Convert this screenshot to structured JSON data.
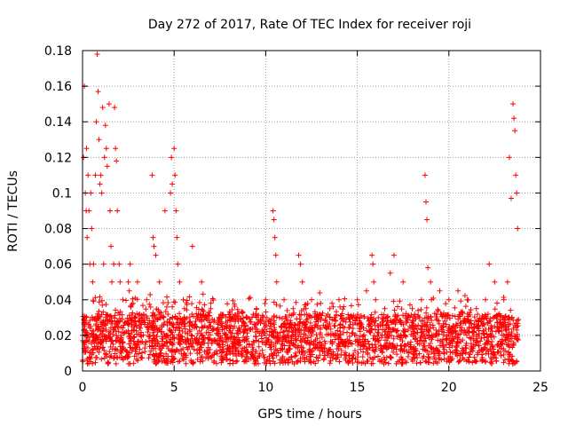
{
  "chart_data": {
    "type": "scatter",
    "title": "Day 272 of 2017, Rate Of TEC Index for receiver roji",
    "xlabel": "GPS time / hours",
    "ylabel": "ROTI / TECUs",
    "xlim": [
      0,
      25
    ],
    "ylim": [
      0,
      0.18
    ],
    "xticks": [
      0,
      5,
      10,
      15,
      20,
      25
    ],
    "xtick_labels": [
      "0",
      "5",
      "10",
      "15",
      "20",
      "25"
    ],
    "yticks": [
      0,
      0.02,
      0.04,
      0.06,
      0.08,
      0.1,
      0.12,
      0.14,
      0.16,
      0.18
    ],
    "ytick_labels": [
      "0",
      "0.02",
      "0.04",
      "0.06",
      "0.08",
      "0.1",
      "0.12",
      "0.14",
      "0.16",
      "0.18"
    ],
    "grid": true,
    "marker": "plus",
    "color": "#ff0000",
    "series": [
      {
        "name": "ROTI",
        "x": [
          0.0,
          0.05,
          0.1,
          0.15,
          0.2,
          0.22,
          0.25,
          0.3,
          0.35,
          0.4,
          0.45,
          0.5,
          0.55,
          0.6,
          0.7,
          0.75,
          0.8,
          0.85,
          0.9,
          0.95,
          1.0,
          1.05,
          1.1,
          1.15,
          1.2,
          1.25,
          1.3,
          1.35,
          1.45,
          1.5,
          1.55,
          1.6,
          1.7,
          1.75,
          1.8,
          1.85,
          1.9,
          2.0,
          2.05,
          2.2,
          2.5,
          2.55,
          2.6,
          3.0,
          3.5,
          3.8,
          3.85,
          3.9,
          4.0,
          4.2,
          4.5,
          4.8,
          4.85,
          4.9,
          5.0,
          5.05,
          5.1,
          5.15,
          5.2,
          5.3,
          5.5,
          6.0,
          6.3,
          6.5,
          7.0,
          7.5,
          8.0,
          8.5,
          9.0,
          9.5,
          10.0,
          10.4,
          10.45,
          10.5,
          10.55,
          10.6,
          11.0,
          11.5,
          11.8,
          11.9,
          12.0,
          12.2,
          12.5,
          13.0,
          13.5,
          14.0,
          14.5,
          15.0,
          15.5,
          15.8,
          15.85,
          15.9,
          16.0,
          16.5,
          16.8,
          17.0,
          17.5,
          18.0,
          18.5,
          18.7,
          18.75,
          18.8,
          18.85,
          19.0,
          19.5,
          20.0,
          20.5,
          21.0,
          21.5,
          22.0,
          22.2,
          22.5,
          23.0,
          23.2,
          23.3,
          23.4,
          23.5,
          23.55,
          23.6,
          23.65,
          23.7,
          23.75
        ],
        "y": [
          0.02,
          0.12,
          0.16,
          0.1,
          0.09,
          0.125,
          0.075,
          0.11,
          0.09,
          0.06,
          0.1,
          0.08,
          0.05,
          0.06,
          0.11,
          0.14,
          0.178,
          0.157,
          0.13,
          0.105,
          0.11,
          0.1,
          0.148,
          0.06,
          0.12,
          0.138,
          0.125,
          0.115,
          0.15,
          0.09,
          0.07,
          0.05,
          0.06,
          0.148,
          0.125,
          0.118,
          0.09,
          0.06,
          0.05,
          0.04,
          0.05,
          0.045,
          0.06,
          0.05,
          0.04,
          0.11,
          0.075,
          0.07,
          0.065,
          0.05,
          0.09,
          0.1,
          0.12,
          0.105,
          0.125,
          0.11,
          0.09,
          0.075,
          0.06,
          0.05,
          0.04,
          0.07,
          0.03,
          0.05,
          0.035,
          0.03,
          0.025,
          0.028,
          0.03,
          0.035,
          0.04,
          0.09,
          0.085,
          0.075,
          0.065,
          0.05,
          0.04,
          0.035,
          0.065,
          0.06,
          0.05,
          0.035,
          0.04,
          0.038,
          0.035,
          0.04,
          0.03,
          0.04,
          0.045,
          0.065,
          0.06,
          0.05,
          0.04,
          0.035,
          0.055,
          0.065,
          0.05,
          0.035,
          0.04,
          0.11,
          0.095,
          0.085,
          0.058,
          0.05,
          0.045,
          0.04,
          0.045,
          0.04,
          0.035,
          0.04,
          0.06,
          0.05,
          0.04,
          0.05,
          0.12,
          0.097,
          0.15,
          0.142,
          0.135,
          0.11,
          0.1,
          0.08
        ]
      }
    ]
  }
}
